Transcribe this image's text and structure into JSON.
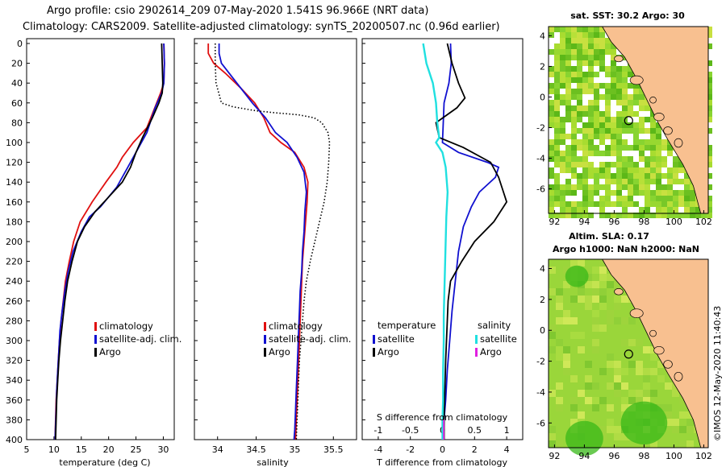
{
  "header": {
    "line1": "Argo profile: csio 2902614_209 07-May-2020 1.541S 96.966E (NRT data)",
    "line2": "Climatology: CARS2009. Satellite-adjusted climatology: synTS_20200507.nc (0.96d earlier)"
  },
  "colors": {
    "climatology": "#e01010",
    "satellite": "#1010d0",
    "argo": "#000000",
    "sal_satellite": "#20e0e0",
    "sal_argo": "#e020e0",
    "land": "#f8c090",
    "map_green": "#50c020"
  },
  "depth_axis": {
    "range": [
      0,
      400
    ],
    "ticks": [
      "0",
      "20",
      "40",
      "60",
      "80",
      "100",
      "120",
      "140",
      "160",
      "180",
      "200",
      "220",
      "240",
      "260",
      "280",
      "300",
      "320",
      "340",
      "360",
      "380",
      "400"
    ]
  },
  "chart_data": [
    {
      "type": "line",
      "name": "temperature",
      "xlabel": "temperature (deg C)",
      "xlim": [
        5,
        32
      ],
      "xticks": [
        "5",
        "10",
        "15",
        "20",
        "25",
        "30"
      ],
      "ylim": [
        400,
        0
      ],
      "legend": [
        "climatology",
        "satellite-adj. clim.",
        "Argo"
      ],
      "series": [
        {
          "name": "climatology",
          "color": "red",
          "points": [
            [
              30.1,
              0
            ],
            [
              30.2,
              20
            ],
            [
              30.1,
              40
            ],
            [
              29.5,
              50
            ],
            [
              27,
              85
            ],
            [
              24.5,
              100
            ],
            [
              22.5,
              115
            ],
            [
              21.5,
              125
            ],
            [
              19.5,
              140
            ],
            [
              17,
              160
            ],
            [
              14.8,
              180
            ],
            [
              13.6,
              200
            ],
            [
              12.8,
              220
            ],
            [
              12.1,
              240
            ],
            [
              11.7,
              260
            ],
            [
              11.3,
              280
            ],
            [
              11,
              300
            ],
            [
              10.8,
              320
            ],
            [
              10.6,
              340
            ],
            [
              10.4,
              360
            ],
            [
              10.3,
              380
            ],
            [
              10.2,
              400
            ]
          ]
        },
        {
          "name": "satellite-adj. clim.",
          "color": "blue",
          "points": [
            [
              30.1,
              0
            ],
            [
              30.2,
              20
            ],
            [
              30.1,
              40
            ],
            [
              29.7,
              50
            ],
            [
              28.5,
              65
            ],
            [
              27,
              90
            ],
            [
              25.5,
              105
            ],
            [
              23.5,
              125
            ],
            [
              21.5,
              145
            ],
            [
              18.5,
              165
            ],
            [
              16.5,
              175
            ],
            [
              15,
              190
            ],
            [
              13.5,
              210
            ],
            [
              12.6,
              230
            ],
            [
              12,
              250
            ],
            [
              11.5,
              270
            ],
            [
              11.1,
              290
            ],
            [
              10.9,
              310
            ],
            [
              10.7,
              330
            ],
            [
              10.5,
              350
            ],
            [
              10.4,
              370
            ],
            [
              10.3,
              385
            ],
            [
              10.2,
              400
            ]
          ]
        },
        {
          "name": "Argo",
          "color": "black",
          "points": [
            [
              29.7,
              0
            ],
            [
              29.8,
              20
            ],
            [
              29.9,
              40
            ],
            [
              29.8,
              50
            ],
            [
              29.2,
              60
            ],
            [
              28,
              75
            ],
            [
              26.2,
              95
            ],
            [
              25,
              110
            ],
            [
              24,
              125
            ],
            [
              22.5,
              140
            ],
            [
              20,
              155
            ],
            [
              17.5,
              170
            ],
            [
              15.6,
              185
            ],
            [
              14.3,
              200
            ],
            [
              13.3,
              220
            ],
            [
              12.5,
              240
            ],
            [
              12,
              260
            ],
            [
              11.6,
              280
            ],
            [
              11.2,
              300
            ],
            [
              10.9,
              320
            ],
            [
              10.7,
              340
            ],
            [
              10.5,
              360
            ],
            [
              10.4,
              380
            ],
            [
              10.3,
              400
            ]
          ]
        }
      ]
    },
    {
      "type": "line",
      "name": "salinity",
      "xlabel": "salinity",
      "xlim": [
        33.7,
        35.8
      ],
      "xticks": [
        "34",
        "34.5",
        "35",
        "35.5"
      ],
      "ylim": [
        400,
        0
      ],
      "legend": [
        "climatology",
        "satellite-adj. clim.",
        "Argo"
      ],
      "series": [
        {
          "name": "climatology",
          "color": "red",
          "points": [
            [
              33.88,
              0
            ],
            [
              33.88,
              10
            ],
            [
              33.95,
              20
            ],
            [
              34.1,
              30
            ],
            [
              34.3,
              45
            ],
            [
              34.48,
              60
            ],
            [
              34.6,
              75
            ],
            [
              34.68,
              90
            ],
            [
              34.82,
              100
            ],
            [
              35.0,
              110
            ],
            [
              35.12,
              125
            ],
            [
              35.17,
              140
            ],
            [
              35.16,
              160
            ],
            [
              35.14,
              180
            ],
            [
              35.12,
              200
            ],
            [
              35.1,
              220
            ],
            [
              35.09,
              240
            ],
            [
              35.08,
              260
            ],
            [
              35.07,
              280
            ],
            [
              35.06,
              300
            ],
            [
              35.05,
              320
            ],
            [
              35.04,
              340
            ],
            [
              35.03,
              360
            ],
            [
              35.02,
              380
            ],
            [
              35.01,
              400
            ]
          ]
        },
        {
          "name": "satellite-adj. clim.",
          "color": "blue",
          "points": [
            [
              34.02,
              0
            ],
            [
              34.02,
              10
            ],
            [
              34.05,
              20
            ],
            [
              34.15,
              30
            ],
            [
              34.3,
              45
            ],
            [
              34.45,
              60
            ],
            [
              34.62,
              75
            ],
            [
              34.75,
              90
            ],
            [
              34.9,
              100
            ],
            [
              35.03,
              115
            ],
            [
              35.12,
              130
            ],
            [
              35.15,
              150
            ],
            [
              35.13,
              170
            ],
            [
              35.12,
              190
            ],
            [
              35.1,
              210
            ],
            [
              35.09,
              230
            ],
            [
              35.07,
              250
            ],
            [
              35.06,
              270
            ],
            [
              35.05,
              290
            ],
            [
              35.04,
              310
            ],
            [
              35.03,
              330
            ],
            [
              35.02,
              350
            ],
            [
              35.01,
              370
            ],
            [
              35.0,
              390
            ],
            [
              34.99,
              400
            ]
          ]
        },
        {
          "name": "Argo",
          "color": "black",
          "points": [
            [
              33.97,
              0
            ],
            [
              33.97,
              20
            ],
            [
              33.98,
              40
            ],
            [
              34.05,
              60
            ],
            [
              34.2,
              64
            ],
            [
              34.5,
              68
            ],
            [
              34.75,
              70
            ],
            [
              35.05,
              72
            ],
            [
              35.25,
              75
            ],
            [
              35.35,
              80
            ],
            [
              35.43,
              90
            ],
            [
              35.45,
              100
            ],
            [
              35.44,
              120
            ],
            [
              35.42,
              140
            ],
            [
              35.38,
              160
            ],
            [
              35.32,
              180
            ],
            [
              35.26,
              200
            ],
            [
              35.2,
              220
            ],
            [
              35.15,
              240
            ],
            [
              35.12,
              260
            ],
            [
              35.1,
              280
            ],
            [
              35.08,
              300
            ],
            [
              35.06,
              320
            ],
            [
              35.05,
              340
            ],
            [
              35.04,
              360
            ],
            [
              35.03,
              380
            ],
            [
              35.02,
              400
            ]
          ]
        }
      ]
    },
    {
      "type": "line",
      "name": "difference",
      "xlabel": "T difference from climatology",
      "xlabel2": "S difference from climatology",
      "xlim": [
        -5,
        5
      ],
      "xticks": [
        "-4",
        "-2",
        "0",
        "2",
        "4"
      ],
      "xticks2": [
        "-1",
        "-0.5",
        "0",
        "0.5",
        "1"
      ],
      "ylim": [
        400,
        0
      ],
      "legend_title_left": "temperature",
      "legend_title_right": "salinity",
      "legend_left": [
        "satellite",
        "Argo"
      ],
      "legend_right": [
        "satellite",
        "Argo"
      ],
      "series": [
        {
          "name": "T satellite",
          "color": "blue",
          "points": [
            [
              0.5,
              0
            ],
            [
              0.55,
              20
            ],
            [
              0.4,
              40
            ],
            [
              0.1,
              60
            ],
            [
              0.05,
              80
            ],
            [
              0,
              100
            ],
            [
              1,
              110
            ],
            [
              2.8,
              120
            ],
            [
              3.5,
              125
            ],
            [
              3.3,
              135
            ],
            [
              2.3,
              150
            ],
            [
              1.8,
              165
            ],
            [
              1.3,
              185
            ],
            [
              1,
              210
            ],
            [
              0.8,
              240
            ],
            [
              0.6,
              270
            ],
            [
              0.45,
              300
            ],
            [
              0.3,
              330
            ],
            [
              0.2,
              360
            ],
            [
              0.1,
              380
            ],
            [
              0.05,
              400
            ]
          ]
        },
        {
          "name": "T Argo",
          "color": "black",
          "points": [
            [
              0.3,
              0
            ],
            [
              0.6,
              20
            ],
            [
              1,
              40
            ],
            [
              1.4,
              55
            ],
            [
              0.9,
              65
            ],
            [
              -0.4,
              80
            ],
            [
              -0.2,
              95
            ],
            [
              1.3,
              105
            ],
            [
              3,
              120
            ],
            [
              3.5,
              135
            ],
            [
              3.8,
              150
            ],
            [
              4,
              160
            ],
            [
              3.2,
              180
            ],
            [
              2,
              200
            ],
            [
              1.2,
              220
            ],
            [
              0.5,
              240
            ],
            [
              0.35,
              260
            ],
            [
              0.3,
              280
            ],
            [
              0.25,
              300
            ],
            [
              0.2,
              320
            ],
            [
              0.15,
              350
            ],
            [
              0.1,
              380
            ],
            [
              0.1,
              400
            ]
          ]
        },
        {
          "name": "S satellite",
          "color": "cyan",
          "points": [
            [
              -0.3,
              0
            ],
            [
              -0.25,
              20
            ],
            [
              -0.15,
              40
            ],
            [
              -0.1,
              60
            ],
            [
              -0.08,
              80
            ],
            [
              -0.05,
              95
            ],
            [
              -0.1,
              100
            ],
            [
              0,
              110
            ],
            [
              0.05,
              125
            ],
            [
              0.08,
              150
            ],
            [
              0.06,
              175
            ],
            [
              0.05,
              200
            ],
            [
              0.04,
              225
            ],
            [
              0.03,
              250
            ],
            [
              0.02,
              275
            ],
            [
              0.02,
              300
            ],
            [
              0.01,
              330
            ],
            [
              0.01,
              360
            ],
            [
              0,
              380
            ],
            [
              0,
              400
            ]
          ]
        },
        {
          "name": "S Argo",
          "color": "magenta",
          "points": [
            [
              0.02,
              400
            ],
            [
              0.02,
              380
            ]
          ]
        }
      ]
    }
  ],
  "maps": {
    "top": {
      "title": "sat. SST: 30.2 Argo: 30",
      "xticks": [
        "92",
        "94",
        "96",
        "98",
        "100",
        "102"
      ],
      "yticks": [
        "4",
        "2",
        "0",
        "-2",
        "-4",
        "-6"
      ]
    },
    "bottom": {
      "title1": "Altim. SLA: 0.17",
      "title2": "Argo h1000: NaN h2000: NaN",
      "xticks": [
        "92",
        "94",
        "96",
        "98",
        "100",
        "102"
      ],
      "yticks": [
        "4",
        "2",
        "0",
        "-2",
        "-4",
        "-6"
      ]
    },
    "argo_position": {
      "lon": 96.966,
      "lat": -1.541
    }
  },
  "stamp": "©IMOS 12-May-2020 11:40:43"
}
